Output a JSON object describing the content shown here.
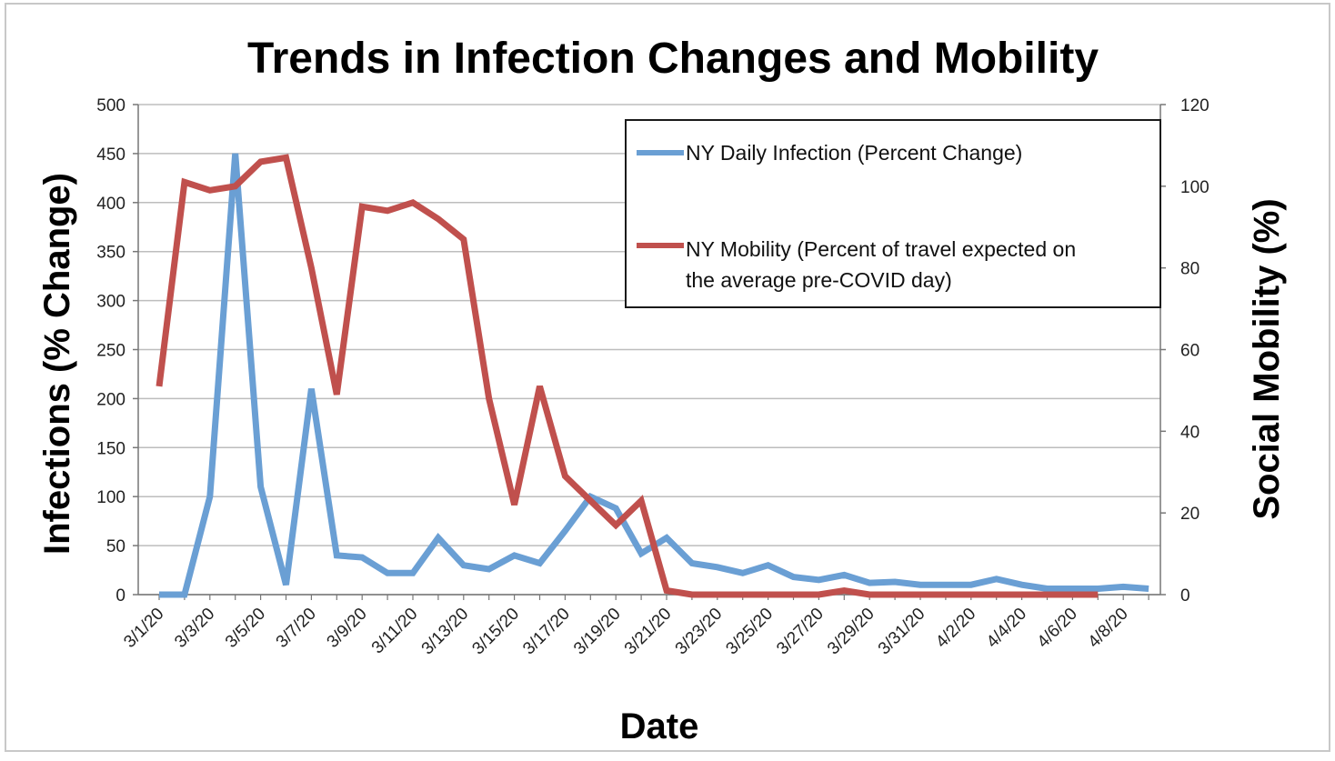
{
  "chart_data": {
    "type": "line",
    "title": "Trends in Infection Changes and Mobility",
    "xlabel": "Date",
    "ylabel": "Infections (% Change)",
    "y2label": "Social Mobility (%)",
    "ylim": [
      0,
      500
    ],
    "y2lim": [
      0,
      120
    ],
    "yticks": [
      "0",
      "50",
      "100",
      "150",
      "200",
      "250",
      "300",
      "350",
      "400",
      "450",
      "500"
    ],
    "y2ticks": [
      "0",
      "20",
      "40",
      "60",
      "80",
      "100",
      "120"
    ],
    "grid": true,
    "legend_position": "top-right",
    "x": [
      "3/1/20",
      "3/2/20",
      "3/3/20",
      "3/4/20",
      "3/5/20",
      "3/6/20",
      "3/7/20",
      "3/8/20",
      "3/9/20",
      "3/10/20",
      "3/11/20",
      "3/12/20",
      "3/13/20",
      "3/14/20",
      "3/15/20",
      "3/16/20",
      "3/17/20",
      "3/18/20",
      "3/19/20",
      "3/20/20",
      "3/21/20",
      "3/22/20",
      "3/23/20",
      "3/24/20",
      "3/25/20",
      "3/26/20",
      "3/27/20",
      "3/28/20",
      "3/29/20",
      "3/30/20",
      "3/31/20",
      "4/1/20",
      "4/2/20",
      "4/3/20",
      "4/4/20",
      "4/5/20",
      "4/6/20",
      "4/7/20",
      "4/8/20",
      "4/9/20"
    ],
    "xtick_labels": [
      "3/1/20",
      "3/3/20",
      "3/5/20",
      "3/7/20",
      "3/9/20",
      "3/11/20",
      "3/13/20",
      "3/15/20",
      "3/17/20",
      "3/19/20",
      "3/21/20",
      "3/23/20",
      "3/25/20",
      "3/27/20",
      "3/29/20",
      "3/31/20",
      "4/2/20",
      "4/4/20",
      "4/6/20",
      "4/8/20"
    ],
    "series": [
      {
        "name": "NY Daily Infection (Percent Change)",
        "axis": "left",
        "color": "#6a9fd4",
        "values": [
          0,
          0,
          100,
          450,
          110,
          10,
          210,
          40,
          38,
          22,
          22,
          58,
          30,
          26,
          40,
          32,
          65,
          100,
          88,
          42,
          58,
          32,
          28,
          22,
          30,
          18,
          15,
          20,
          12,
          13,
          10,
          10,
          10,
          16,
          10,
          6,
          6,
          6,
          8,
          6
        ]
      },
      {
        "name": "NY Mobility (Percent of travel expected on the average pre-COVID day)",
        "axis": "right",
        "color": "#c0504d",
        "values": [
          51,
          101,
          99,
          100,
          106,
          107,
          80,
          49,
          95,
          94,
          96,
          92,
          87,
          48,
          22,
          51,
          29,
          23,
          17,
          23,
          1,
          0,
          0,
          0,
          0,
          0,
          0,
          1,
          0,
          0,
          0,
          0,
          0,
          0,
          0,
          0,
          0,
          0,
          null,
          null
        ]
      }
    ],
    "legend": [
      "NY Daily Infection (Percent Change)",
      "NY Mobility (Percent of travel expected on the average pre-COVID day)"
    ]
  }
}
